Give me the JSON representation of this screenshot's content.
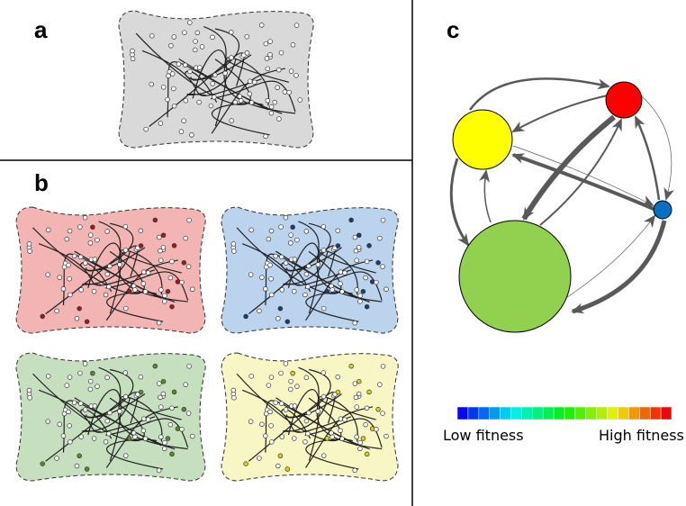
{
  "labels": {
    "a": "a",
    "b": "b",
    "c": "c"
  },
  "colorbar": {
    "low": "Low fitness",
    "high": "High fitness"
  }
}
